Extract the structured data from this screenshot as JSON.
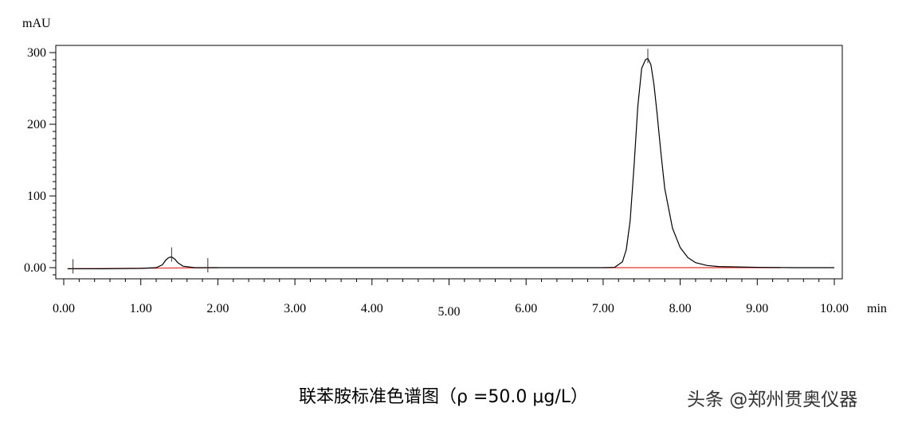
{
  "chart_data": {
    "type": "line",
    "title": "",
    "xlabel": "min",
    "ylabel": "mAU",
    "xlim": [
      0,
      10
    ],
    "ylim": [
      -15,
      310
    ],
    "x_ticks": [
      {
        "value": 0,
        "label": "0.00"
      },
      {
        "value": 1,
        "label": "1.00"
      },
      {
        "value": 2,
        "label": "2.00"
      },
      {
        "value": 3,
        "label": "3.00"
      },
      {
        "value": 4,
        "label": "4.00"
      },
      {
        "value": 5,
        "label": "5.00"
      },
      {
        "value": 6,
        "label": "6.00"
      },
      {
        "value": 7,
        "label": "7.00"
      },
      {
        "value": 8,
        "label": "8.00"
      },
      {
        "value": 9,
        "label": "9.00"
      },
      {
        "value": 10,
        "label": "10.00"
      }
    ],
    "y_ticks": [
      {
        "value": 0,
        "label": "0.00"
      },
      {
        "value": 100,
        "label": "100"
      },
      {
        "value": 200,
        "label": "200"
      },
      {
        "value": 300,
        "label": "300"
      }
    ],
    "grid": false,
    "series": [
      {
        "color": "#000000",
        "x": [
          0.05,
          0.5,
          1.0,
          1.2,
          1.28,
          1.32,
          1.36,
          1.4,
          1.44,
          1.48,
          1.55,
          1.7,
          2.0,
          3.0,
          5.0,
          7.0,
          7.15,
          7.25,
          7.3,
          7.35,
          7.4,
          7.45,
          7.5,
          7.55,
          7.58,
          7.62,
          7.66,
          7.7,
          7.75,
          7.8,
          7.9,
          8.0,
          8.1,
          8.2,
          8.35,
          8.5,
          9.0,
          9.5,
          10.0
        ],
        "y": [
          -1.5,
          -1.5,
          -1.0,
          0.0,
          4.0,
          10.0,
          14.0,
          15.0,
          12.0,
          7.0,
          2.0,
          0.0,
          0.0,
          0.0,
          0.0,
          0.0,
          0.5,
          8.0,
          25.0,
          65.0,
          140.0,
          225.0,
          278.0,
          290.0,
          292.0,
          283.0,
          255.0,
          215.0,
          160.0,
          110.0,
          55.0,
          28.0,
          14.0,
          7.0,
          3.0,
          1.5,
          0.5,
          0.0,
          0.0
        ]
      }
    ],
    "baselines": [
      {
        "color": "#e03030",
        "x": [
          0.05,
          2.0
        ],
        "y": [
          -1.5,
          0.0
        ]
      },
      {
        "color": "#e03030",
        "x": [
          7.0,
          9.3
        ],
        "y": [
          0.0,
          0.0
        ]
      }
    ],
    "markers": [
      {
        "x": 0.12,
        "label": ""
      },
      {
        "x": 1.4,
        "label": ""
      },
      {
        "x": 1.87,
        "label": ""
      },
      {
        "x": 7.58,
        "label": ""
      }
    ]
  },
  "caption": "联苯胺标准色谱图（ρ =50.0  μg/L）",
  "watermark": "头条 @郑州贯奥仪器"
}
